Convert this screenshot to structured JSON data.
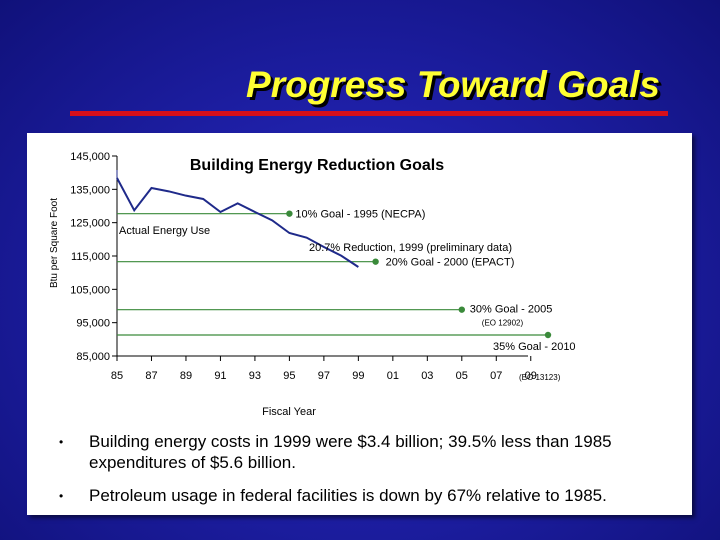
{
  "slide": {
    "title": "Progress Toward Goals",
    "accent_color": "#d60f1a",
    "title_color": "#ffff33"
  },
  "chart_data": {
    "type": "line",
    "title": "Building Energy Reduction Goals",
    "xlabel": "Fiscal Year",
    "ylabel": "Btu per Square Foot",
    "xlim": [
      1985,
      2010
    ],
    "ylim": [
      85000,
      145000
    ],
    "x_ticks": [
      1985,
      1987,
      1989,
      1991,
      1993,
      1995,
      1997,
      1999,
      2001,
      2003,
      2005,
      2007,
      2009
    ],
    "x_tick_labels": [
      "85",
      "87",
      "89",
      "91",
      "93",
      "95",
      "97",
      "99",
      "01",
      "03",
      "05",
      "07",
      "09"
    ],
    "y_ticks": [
      85000,
      95000,
      105000,
      115000,
      125000,
      135000,
      145000
    ],
    "y_tick_labels": [
      "85,000",
      "95,000",
      "105,000",
      "115,000",
      "125,000",
      "135,000",
      "145,000"
    ],
    "grid": false,
    "series": [
      {
        "name": "Actual Energy Use",
        "color": "#1f2a8a",
        "x": [
          1985,
          1986,
          1987,
          1988,
          1989,
          1990,
          1991,
          1992,
          1993,
          1994,
          1995,
          1996,
          1997,
          1998,
          1999
        ],
        "y": [
          138400,
          128700,
          135400,
          134400,
          133100,
          132100,
          128200,
          130800,
          128200,
          125700,
          121900,
          120500,
          117700,
          115100,
          111700
        ]
      }
    ],
    "goal_lines": [
      {
        "label": "10% Goal - 1995 (NECPA)",
        "note": "",
        "year": 1995,
        "value": 127700,
        "color": "#3a8a3a"
      },
      {
        "label": "20% Goal - 2000 (EPACT)",
        "note": "",
        "year": 2000,
        "value": 113300,
        "color": "#3a8a3a"
      },
      {
        "label": "30% Goal - 2005",
        "note": "(EO 12902)",
        "year": 2005,
        "value": 98900,
        "color": "#3a8a3a"
      },
      {
        "label": "35% Goal - 2010",
        "note": "(EO 13123)",
        "year": 2010,
        "value": 91300,
        "color": "#3a8a3a"
      }
    ],
    "annotations": [
      {
        "text": "Actual Energy Use"
      },
      {
        "text": "20.7% Reduction, 1999 (preliminary data)"
      }
    ]
  },
  "bullets": [
    "Building energy costs in 1999 were $3.4 billion; 39.5% less than 1985 expenditures of $5.6 billion.",
    "Petroleum usage in federal facilities is down by 67% relative to 1985."
  ]
}
